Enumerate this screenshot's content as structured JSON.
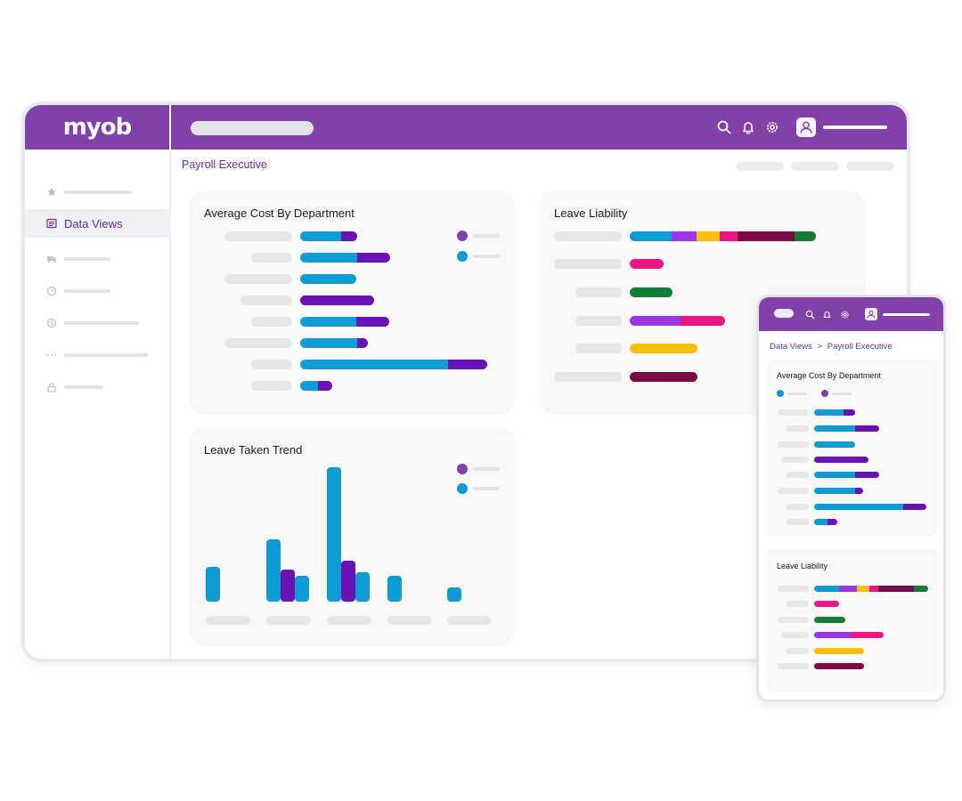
{
  "brand": {
    "logo_text": "myob",
    "primary_color": "#8241aa"
  },
  "colors": {
    "blue": "#0d9bd4",
    "purple": "#6a11b3",
    "violet": "#9b36e6",
    "yellow": "#fbbf0e",
    "pink": "#ec1584",
    "maroon": "#7a0a43",
    "green": "#137e33",
    "legend_purple": "#8241aa",
    "legend_blue": "#0d9bd4"
  },
  "header": {
    "icons": [
      "search-icon",
      "bell-icon",
      "gear-icon",
      "user-avatar-icon"
    ]
  },
  "sidebar": {
    "items": [
      {
        "icon": "star-icon",
        "label": ""
      },
      {
        "icon": "data-views-icon",
        "label": "Data Views",
        "active": true
      },
      {
        "icon": "truck-icon",
        "label": ""
      },
      {
        "icon": "clock-icon",
        "label": ""
      },
      {
        "icon": "dollar-icon",
        "label": ""
      },
      {
        "icon": "more-icon",
        "label": ""
      },
      {
        "icon": "lock-icon",
        "label": ""
      }
    ]
  },
  "page": {
    "breadcrumb": "Payroll Executive"
  },
  "cards": {
    "avg_cost": {
      "title": "Average Cost By Department"
    },
    "leave_liability": {
      "title": "Leave Liability"
    },
    "leave_trend": {
      "title": "Leave Taken Trend"
    }
  },
  "chart_data": [
    {
      "type": "bar",
      "title": "Average Cost By Department",
      "orientation": "horizontal",
      "stacked": true,
      "series": [
        {
          "color": "#0d9bd4",
          "values": [
            46,
            64,
            63,
            0,
            63,
            64,
            166,
            20
          ]
        },
        {
          "color": "#6a11b3",
          "values": [
            18,
            37,
            0,
            83,
            37,
            12,
            44,
            16
          ]
        }
      ]
    },
    {
      "type": "bar",
      "title": "Leave Liability",
      "orientation": "horizontal",
      "stacked": true,
      "series_colors": [
        "#0d9bd4",
        "#9b36e6",
        "#fbbf0e",
        "#ec1584",
        "#7a0a43",
        "#137e33"
      ],
      "rows": [
        [
          47,
          28,
          26,
          20,
          64,
          24
        ],
        [
          0,
          0,
          0,
          38,
          0,
          0
        ],
        [
          0,
          0,
          0,
          0,
          0,
          48
        ],
        [
          0,
          57,
          0,
          50,
          0,
          0
        ],
        [
          0,
          0,
          76,
          0,
          0,
          0
        ],
        [
          0,
          0,
          0,
          0,
          76,
          0
        ]
      ]
    },
    {
      "type": "bar",
      "title": "Leave Taken Trend",
      "orientation": "vertical",
      "series": [
        {
          "color": "#0d9bd4",
          "values": [
            39,
            70,
            151,
            29,
            16
          ]
        },
        {
          "color": "#6a11b3",
          "values": [
            0,
            36,
            46,
            0,
            0
          ]
        },
        {
          "color": "#0d9bd4",
          "values": [
            0,
            29,
            33,
            0,
            0
          ]
        }
      ]
    }
  ],
  "mobile": {
    "breadcrumb": {
      "parent": "Data Views",
      "separator": ">",
      "current": "Payroll Executive"
    },
    "cards": {
      "avg_cost": {
        "title": "Average Cost By Department"
      },
      "leave_liability": {
        "title": "Leave Liability"
      }
    }
  }
}
